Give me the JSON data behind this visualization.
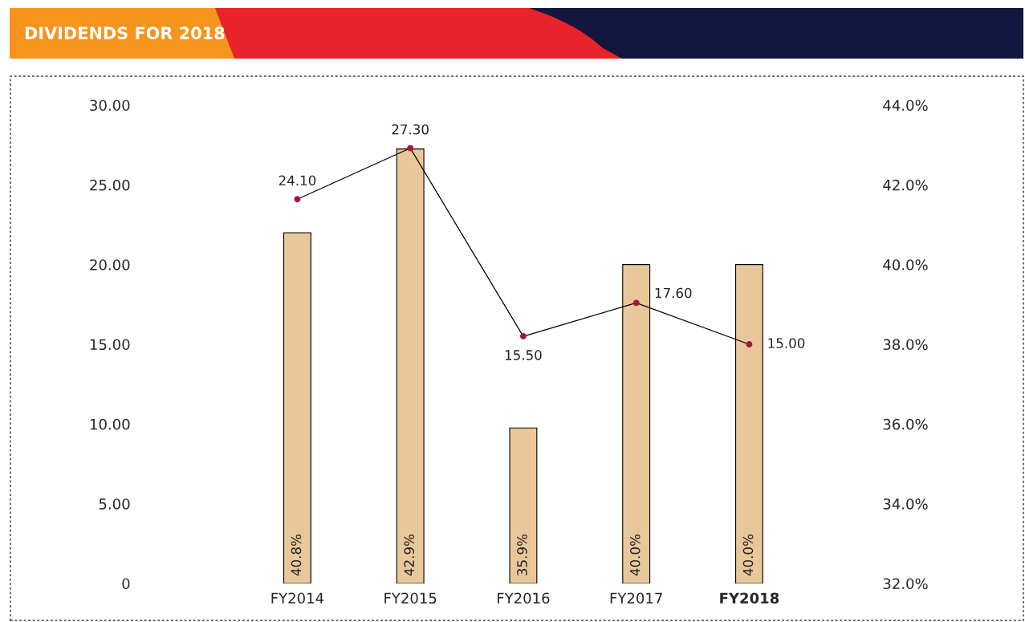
{
  "chart_data": {
    "type": "bar",
    "title": "DIVIDENDS FOR 2018",
    "categories": [
      "FY2014",
      "FY2015",
      "FY2016",
      "FY2017",
      "FY2018"
    ],
    "series": [
      {
        "axis": "y2",
        "color": "#e8c89a",
        "values": [
          40.8,
          42.9,
          35.9,
          40.0,
          40.0
        ],
        "value_labels": [
          "40.8%",
          "42.9%",
          "35.9%",
          "40.0%",
          "40.0%"
        ]
      },
      {
        "type": "line",
        "color": "#000000",
        "colors": [
          "#a3173f",
          "#a3173f",
          "#a3173f",
          "#a3173f",
          "#a3173f"
        ],
        "marker": "circle",
        "line_style": "solid",
        "values": [
          24.1,
          27.3,
          15.5,
          17.6,
          15.0
        ],
        "value_labels": [
          "24.10",
          "27.30",
          "15.50",
          "17.60",
          "15.00"
        ]
      }
    ],
    "ylim": [
      0,
      30
    ],
    "yticks": [
      {
        "value": 0,
        "label": "0"
      },
      {
        "value": 5,
        "label": "5.00"
      },
      {
        "value": 10,
        "label": "10.00"
      },
      {
        "value": 15,
        "label": "15.00"
      },
      {
        "value": 20,
        "label": "20.00"
      },
      {
        "value": 25,
        "label": "25.00"
      },
      {
        "value": 30,
        "label": "30.00"
      }
    ],
    "y2lim": [
      32,
      44
    ],
    "y2ticks": [
      {
        "value": 32,
        "label": "32.0%"
      },
      {
        "value": 34,
        "label": "34.0%"
      },
      {
        "value": 36,
        "label": "36.0%"
      },
      {
        "value": 38,
        "label": "38.0%"
      },
      {
        "value": 40,
        "label": "40.0%"
      },
      {
        "value": 42,
        "label": "42.0%"
      },
      {
        "value": 44,
        "label": "44.0%"
      }
    ],
    "grid": false,
    "legend": false
  }
}
